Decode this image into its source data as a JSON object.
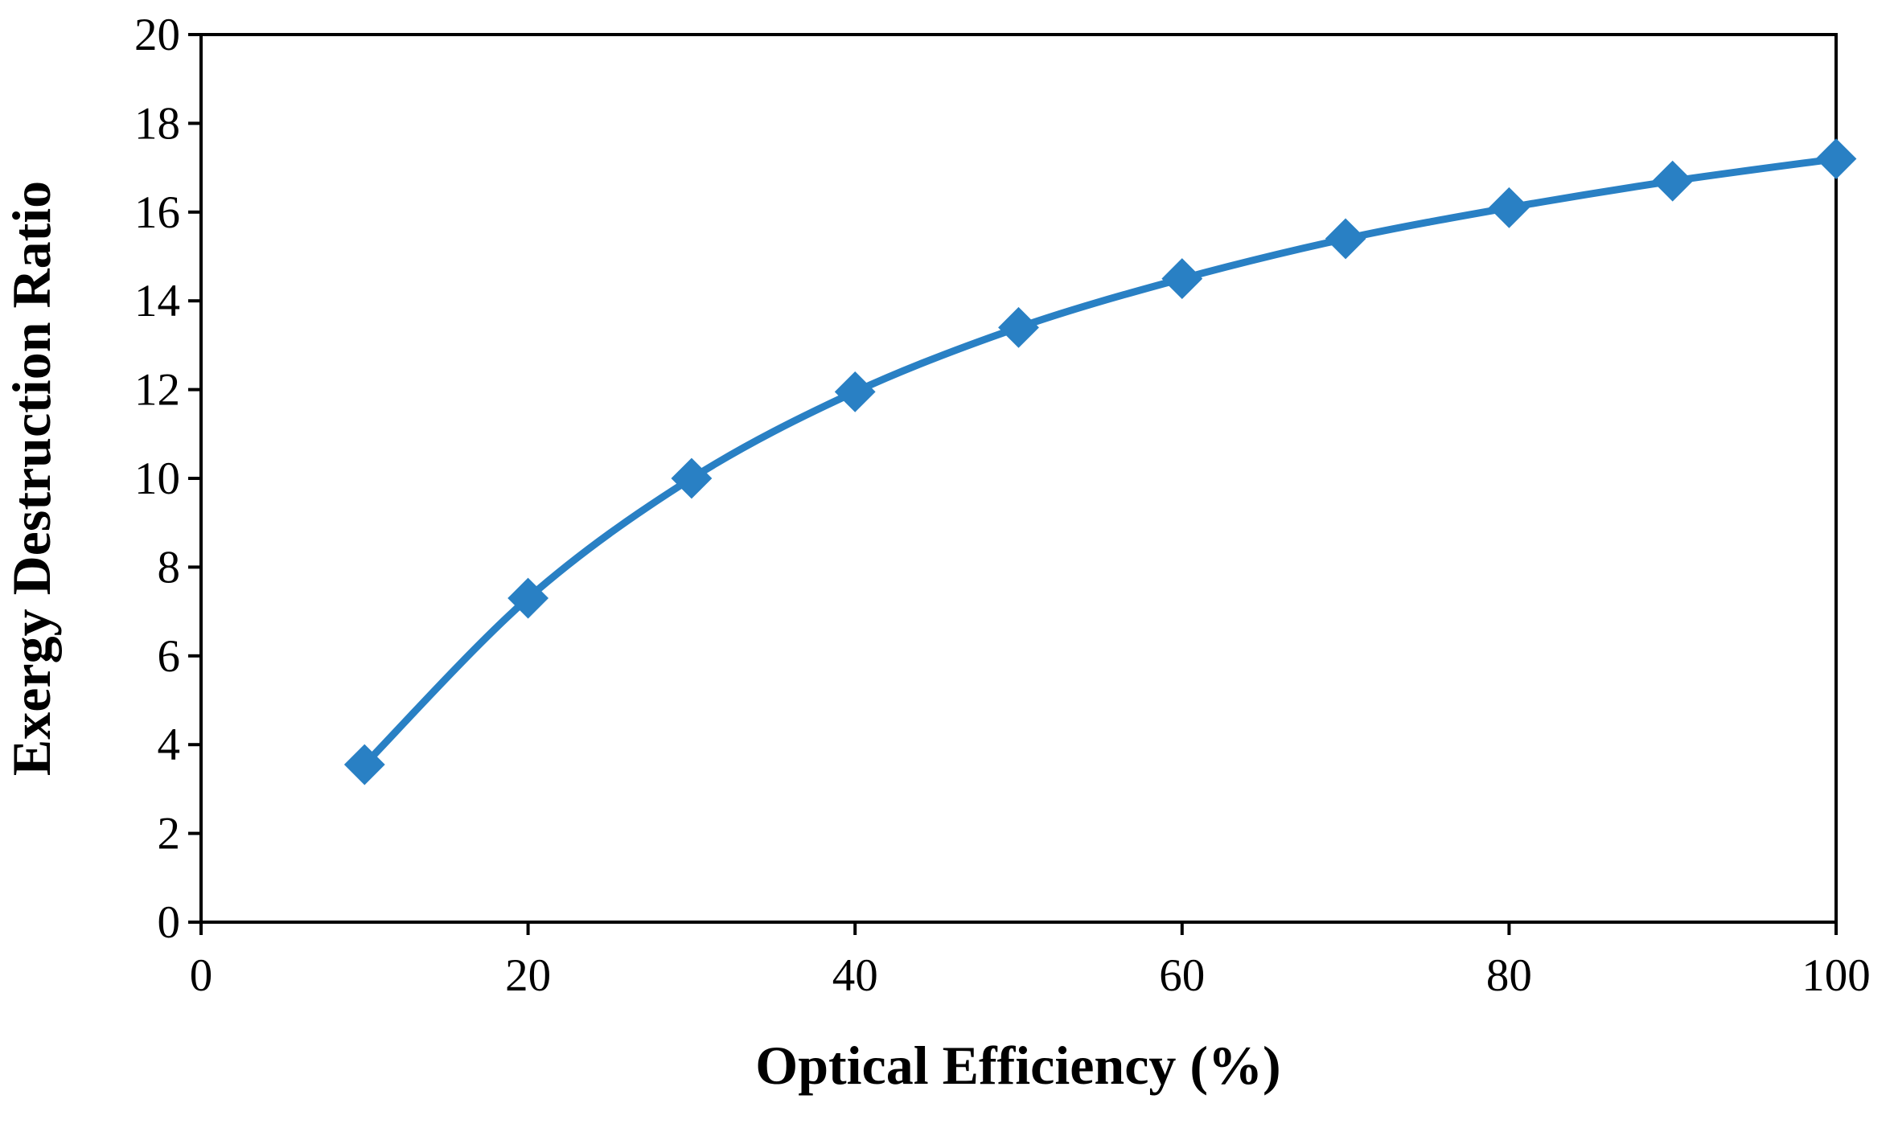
{
  "chart_data": {
    "type": "line",
    "title": "",
    "xlabel": "Optical Efficiency (%)",
    "ylabel": "Exergy Destruction Ratio",
    "xlim": [
      0,
      100
    ],
    "ylim": [
      0,
      20
    ],
    "xticks": [
      0,
      20,
      40,
      60,
      80,
      100
    ],
    "yticks": [
      0,
      2,
      4,
      6,
      8,
      10,
      12,
      14,
      16,
      18,
      20
    ],
    "grid": false,
    "legend": "none",
    "series": [
      {
        "name": "Exergy Destruction Ratio",
        "color": "#2980C4",
        "marker": "diamond",
        "smooth": true,
        "x": [
          10,
          20,
          30,
          40,
          50,
          60,
          70,
          80,
          90,
          100
        ],
        "y": [
          3.55,
          7.3,
          10.0,
          11.95,
          13.4,
          14.5,
          15.4,
          16.1,
          16.7,
          17.2
        ]
      }
    ]
  }
}
